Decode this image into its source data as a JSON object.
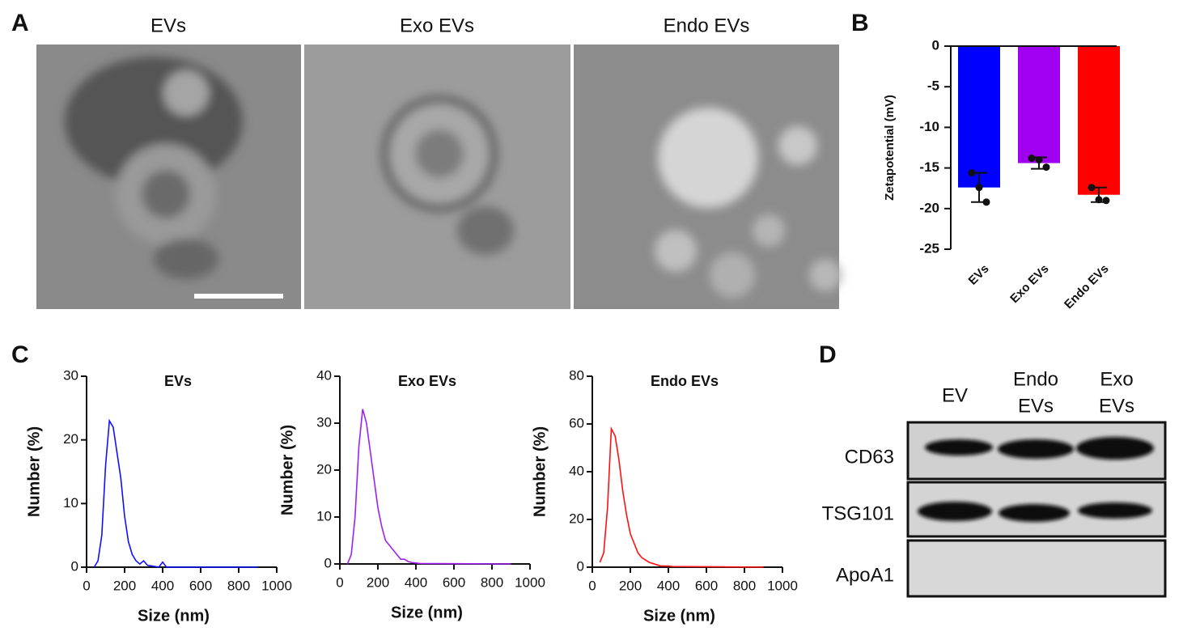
{
  "panel_labels": [
    "A",
    "B",
    "C",
    "D"
  ],
  "tem_images": {
    "titles": [
      "EVs",
      "Exo EVs",
      "Endo EVs"
    ]
  },
  "chart_data": [
    {
      "type": "bar",
      "y_label": "Zetapotential (mV)",
      "categories": [
        "EVs",
        "Exo EVs",
        "Endo EVs"
      ],
      "values": [
        -17.4,
        -14.4,
        -18.3
      ],
      "errors": [
        1.8,
        0.7,
        0.9
      ],
      "points": [
        [
          -15.6,
          -17.4,
          -19.2
        ],
        [
          -13.8,
          -14.0,
          -14.9
        ],
        [
          -17.4,
          -18.9,
          -19.0
        ]
      ],
      "colors": [
        "#0000ff",
        "#a000f0",
        "#ff0000"
      ],
      "ylim": [
        -25,
        0
      ],
      "yticks": [
        0,
        -5,
        -10,
        -15,
        -20,
        -25
      ]
    },
    {
      "type": "line",
      "title": "EVs",
      "x_label": "Size (nm)",
      "y_label": "Number (%)",
      "color": "#1010ff",
      "x": [
        40,
        60,
        80,
        100,
        120,
        140,
        160,
        180,
        200,
        220,
        240,
        260,
        280,
        300,
        320,
        340,
        360,
        380,
        400,
        420,
        900
      ],
      "values": [
        0,
        1,
        5,
        16,
        23,
        22,
        18,
        14,
        8,
        4,
        2,
        1,
        0.5,
        1,
        0.3,
        0.2,
        0.1,
        0,
        0.8,
        0,
        0
      ],
      "xlim": [
        0,
        1000
      ],
      "xticks": [
        0,
        200,
        400,
        600,
        800,
        1000
      ],
      "ylim": [
        0,
        30
      ],
      "yticks": [
        0,
        10,
        20,
        30
      ]
    },
    {
      "type": "line",
      "title": "Exo EVs",
      "x_label": "Size (nm)",
      "y_label": "Number (%)",
      "color": "#a020f0",
      "x": [
        40,
        60,
        80,
        100,
        120,
        140,
        160,
        180,
        200,
        220,
        240,
        260,
        280,
        300,
        320,
        340,
        360,
        380,
        400,
        420,
        900
      ],
      "values": [
        0,
        2,
        10,
        25,
        33,
        30,
        24,
        18,
        12,
        8,
        5,
        4,
        3,
        2,
        1,
        1,
        0.5,
        0.3,
        0.2,
        0.1,
        0
      ],
      "xlim": [
        0,
        1000
      ],
      "xticks": [
        0,
        200,
        400,
        600,
        800,
        1000
      ],
      "ylim": [
        0,
        40
      ],
      "yticks": [
        0,
        10,
        20,
        30,
        40
      ]
    },
    {
      "type": "line",
      "title": "Endo EVs",
      "x_label": "Size (nm)",
      "y_label": "Number (%)",
      "color": "#ff1010",
      "x": [
        40,
        60,
        80,
        100,
        120,
        140,
        160,
        180,
        200,
        220,
        240,
        260,
        280,
        300,
        320,
        340,
        360,
        380,
        400,
        420,
        900
      ],
      "values": [
        2,
        6,
        25,
        58,
        55,
        45,
        32,
        22,
        14,
        10,
        6,
        4,
        3,
        2,
        1.5,
        1,
        0.5,
        0.5,
        0.5,
        0.3,
        0
      ],
      "xlim": [
        0,
        1000
      ],
      "xticks": [
        0,
        200,
        400,
        600,
        800,
        1000
      ],
      "ylim": [
        0,
        80
      ],
      "yticks": [
        0,
        20,
        40,
        60,
        80
      ]
    }
  ],
  "western_blot": {
    "columns": [
      [
        "EV"
      ],
      [
        "Endo",
        "EVs"
      ],
      [
        "Exo",
        "EVs"
      ]
    ],
    "rows": [
      "CD63",
      "TSG101",
      "ApoA1"
    ]
  }
}
